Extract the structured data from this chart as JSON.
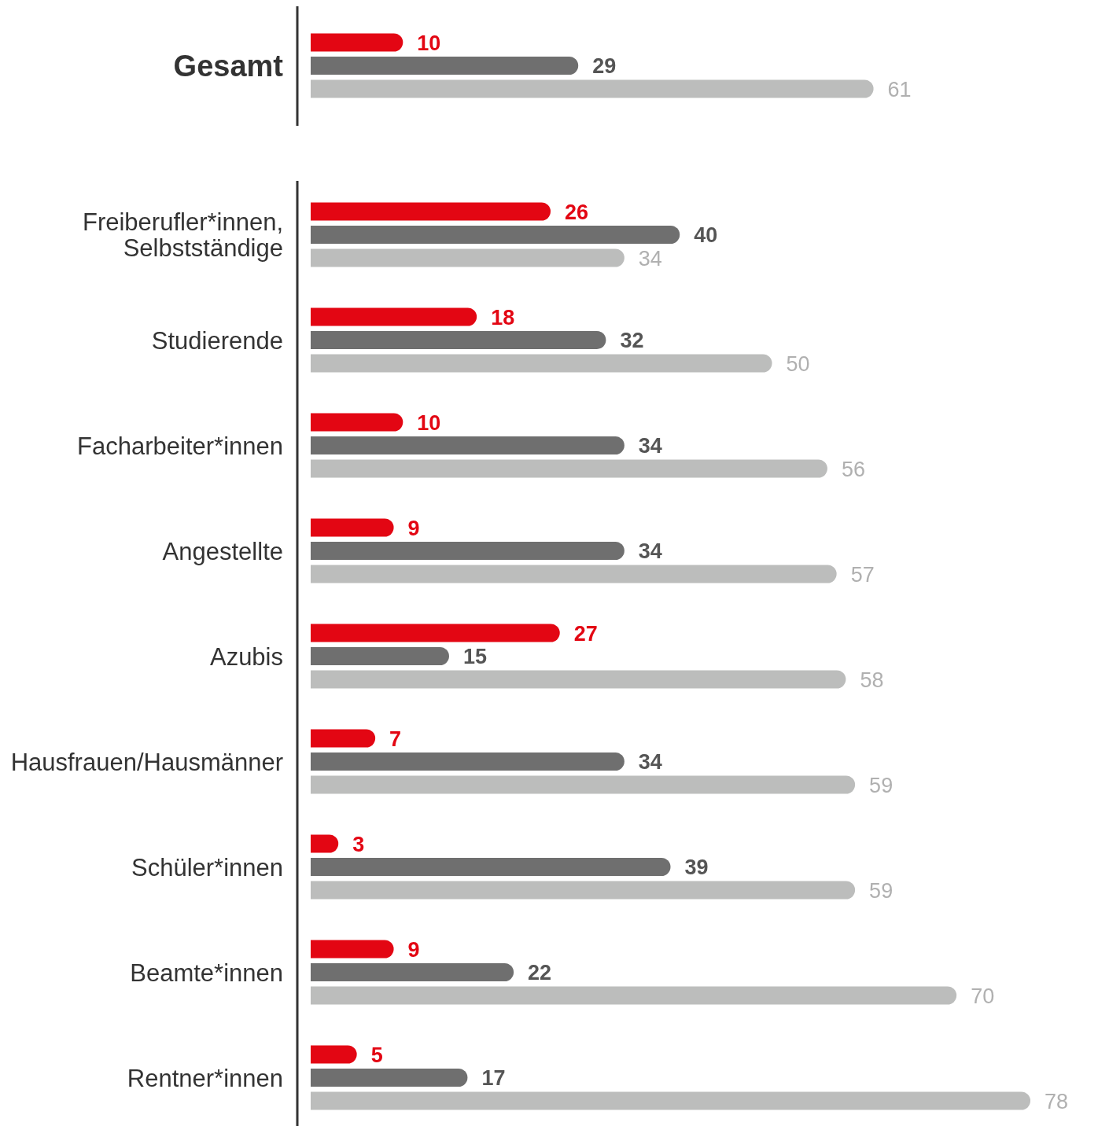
{
  "chart_data": [
    {
      "type": "bar",
      "orientation": "horizontal",
      "categories": [
        "Gesamt"
      ],
      "data_labels": true,
      "series": [
        {
          "color": "#e30613",
          "values": [
            10
          ]
        },
        {
          "color": "#6f6f6f",
          "values": [
            29
          ]
        },
        {
          "color": "#bcbdbc",
          "values": [
            61
          ]
        }
      ]
    },
    {
      "type": "bar",
      "orientation": "horizontal",
      "categories": [
        "Freiberufler*innen, Selbstständige",
        "Studierende",
        "Facharbeiter*innen",
        "Angestellte",
        "Azubis",
        "Hausfrauen/Hausmänner",
        "Schüler*innen",
        "Beamte*innen",
        "Rentner*innen"
      ],
      "data_labels": true,
      "series": [
        {
          "color": "#e30613",
          "values": [
            26,
            18,
            10,
            9,
            27,
            7,
            3,
            9,
            5
          ]
        },
        {
          "color": "#6f6f6f",
          "values": [
            40,
            32,
            34,
            34,
            15,
            34,
            39,
            22,
            17
          ]
        },
        {
          "color": "#bcbdbc",
          "values": [
            34,
            50,
            56,
            57,
            58,
            59,
            59,
            70,
            78
          ]
        }
      ]
    }
  ]
}
